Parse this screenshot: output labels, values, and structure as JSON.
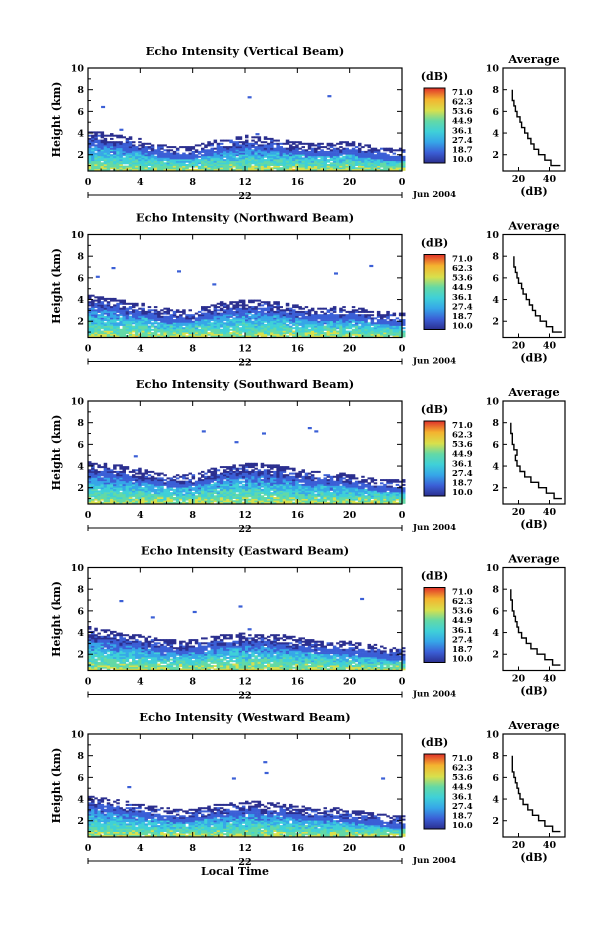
{
  "chart_data": [
    {
      "type": "heatmap",
      "title": "Echo Intensity (Vertical Beam)",
      "ylabel": "Height (km)",
      "xlabel": "",
      "day_label": "22",
      "date_label": "Jun 2004",
      "x_ticks": [
        "0",
        "4",
        "8",
        "12",
        "16",
        "20",
        "0"
      ],
      "y_ticks": [
        "2",
        "4",
        "6",
        "8",
        "10"
      ],
      "xlim": [
        0,
        24
      ],
      "ylim": [
        0.5,
        10
      ],
      "colorbar": {
        "unit": "(dB)",
        "ticks": [
          "71.0",
          "62.3",
          "53.6",
          "44.9",
          "36.1",
          "27.4",
          "18.7",
          "10.0"
        ]
      },
      "layer_top_km": [
        3.8,
        3.7,
        3.5,
        3.3,
        3.1,
        2.8,
        2.5,
        2.4,
        2.5,
        2.8,
        3.1,
        3.2,
        3.4,
        3.3,
        3.2,
        3.0,
        2.9,
        2.7,
        2.7,
        2.8,
        2.9,
        2.6,
        2.4,
        2.3,
        2.2
      ],
      "sparse_points": [
        {
          "t": 1.0,
          "h": 6.5
        },
        {
          "t": 2.4,
          "h": 4.4
        },
        {
          "t": 12.2,
          "h": 7.4
        },
        {
          "t": 18.3,
          "h": 7.5
        },
        {
          "t": 12.8,
          "h": 4.0
        }
      ],
      "average_profile": {
        "title": "Average",
        "xlabel": "(dB)",
        "x_ticks": [
          "20",
          "40"
        ],
        "xlim": [
          10,
          50
        ],
        "y_ticks": [
          "2",
          "4",
          "6",
          "8",
          "10"
        ],
        "height_km": [
          1.0,
          1.5,
          2.0,
          2.5,
          3.0,
          3.5,
          4.0,
          4.5,
          5.0,
          5.5,
          6.0,
          6.5,
          7.0,
          7.5,
          8.0
        ],
        "db": [
          47,
          41,
          37,
          33,
          30,
          28,
          26,
          24,
          22,
          21,
          19,
          18,
          17,
          16,
          16
        ]
      }
    },
    {
      "type": "heatmap",
      "title": "Echo Intensity (Northward Beam)",
      "ylabel": "Height (km)",
      "xlabel": "",
      "day_label": "22",
      "date_label": "Jun 2004",
      "x_ticks": [
        "0",
        "4",
        "8",
        "12",
        "16",
        "20",
        "0"
      ],
      "y_ticks": [
        "2",
        "4",
        "6",
        "8",
        "10"
      ],
      "xlim": [
        0,
        24
      ],
      "ylim": [
        0.5,
        10
      ],
      "colorbar": {
        "unit": "(dB)",
        "ticks": [
          "71.0",
          "62.3",
          "53.6",
          "44.9",
          "36.1",
          "27.4",
          "18.7",
          "10.0"
        ]
      },
      "layer_top_km": [
        4.1,
        3.9,
        3.7,
        3.5,
        3.3,
        3.0,
        2.8,
        2.7,
        2.8,
        3.1,
        3.4,
        3.5,
        3.6,
        3.6,
        3.5,
        3.3,
        3.1,
        2.9,
        2.9,
        3.0,
        3.0,
        2.8,
        2.6,
        2.5,
        2.4
      ],
      "sparse_points": [
        {
          "t": 0.6,
          "h": 6.2
        },
        {
          "t": 1.8,
          "h": 7.0
        },
        {
          "t": 6.8,
          "h": 6.7
        },
        {
          "t": 18.8,
          "h": 6.5
        },
        {
          "t": 21.5,
          "h": 7.2
        },
        {
          "t": 9.5,
          "h": 5.5
        }
      ],
      "average_profile": {
        "title": "Average",
        "xlabel": "(dB)",
        "x_ticks": [
          "20",
          "40"
        ],
        "xlim": [
          10,
          50
        ],
        "y_ticks": [
          "2",
          "4",
          "6",
          "8",
          "10"
        ],
        "height_km": [
          1.0,
          1.5,
          2.0,
          2.5,
          3.0,
          3.5,
          4.0,
          4.5,
          5.0,
          5.5,
          6.0,
          6.5,
          7.0,
          7.5,
          8.0
        ],
        "db": [
          48,
          42,
          38,
          34,
          31,
          29,
          27,
          25,
          23,
          22,
          20,
          19,
          18,
          17,
          17
        ]
      }
    },
    {
      "type": "heatmap",
      "title": "Echo Intensity (Southward Beam)",
      "ylabel": "Height (km)",
      "xlabel": "",
      "day_label": "22",
      "date_label": "Jun 2004",
      "x_ticks": [
        "0",
        "4",
        "8",
        "12",
        "16",
        "20",
        "0"
      ],
      "y_ticks": [
        "2",
        "4",
        "6",
        "8",
        "10"
      ],
      "xlim": [
        0,
        24
      ],
      "ylim": [
        0.5,
        10
      ],
      "colorbar": {
        "unit": "(dB)",
        "ticks": [
          "71.0",
          "62.3",
          "53.6",
          "44.9",
          "36.1",
          "27.4",
          "18.7",
          "10.0"
        ]
      },
      "layer_top_km": [
        4.0,
        3.9,
        3.8,
        3.6,
        3.4,
        3.1,
        2.9,
        2.9,
        3.0,
        3.3,
        3.6,
        3.8,
        3.9,
        3.9,
        3.8,
        3.6,
        3.4,
        3.2,
        3.1,
        3.0,
        2.9,
        2.7,
        2.5,
        2.4,
        2.4
      ],
      "sparse_points": [
        {
          "t": 3.5,
          "h": 5.0
        },
        {
          "t": 8.7,
          "h": 7.3
        },
        {
          "t": 11.2,
          "h": 6.3
        },
        {
          "t": 13.3,
          "h": 7.1
        },
        {
          "t": 16.8,
          "h": 7.6
        },
        {
          "t": 17.3,
          "h": 7.3
        }
      ],
      "average_profile": {
        "title": "Average",
        "xlabel": "(dB)",
        "x_ticks": [
          "20",
          "40"
        ],
        "xlim": [
          10,
          50
        ],
        "y_ticks": [
          "2",
          "4",
          "6",
          "8",
          "10"
        ],
        "height_km": [
          1.0,
          1.5,
          2.0,
          2.5,
          3.0,
          3.5,
          4.0,
          4.5,
          5.0,
          5.5,
          6.0,
          6.5,
          7.0,
          7.5,
          8.0
        ],
        "db": [
          48,
          43,
          38,
          33,
          28,
          24,
          21,
          19,
          18,
          19,
          17,
          16,
          16,
          15,
          15
        ]
      }
    },
    {
      "type": "heatmap",
      "title": "Echo Intensity (Eastward Beam)",
      "ylabel": "Height (km)",
      "xlabel": "",
      "day_label": "22",
      "date_label": "Jun 2004",
      "x_ticks": [
        "0",
        "4",
        "8",
        "12",
        "16",
        "20",
        "0"
      ],
      "y_ticks": [
        "2",
        "4",
        "6",
        "8",
        "10"
      ],
      "xlim": [
        0,
        24
      ],
      "ylim": [
        0.5,
        10
      ],
      "colorbar": {
        "unit": "(dB)",
        "ticks": [
          "71.0",
          "62.3",
          "53.6",
          "44.9",
          "36.1",
          "27.4",
          "18.7",
          "10.0"
        ]
      },
      "layer_top_km": [
        4.2,
        4.0,
        3.8,
        3.6,
        3.4,
        3.2,
        3.0,
        2.9,
        3.0,
        3.2,
        3.4,
        3.5,
        3.6,
        3.6,
        3.5,
        3.4,
        3.2,
        3.0,
        2.9,
        2.8,
        2.8,
        2.6,
        2.5,
        2.3,
        2.2
      ],
      "sparse_points": [
        {
          "t": 2.4,
          "h": 7.0
        },
        {
          "t": 4.8,
          "h": 5.5
        },
        {
          "t": 8.0,
          "h": 6.0
        },
        {
          "t": 11.5,
          "h": 6.5
        },
        {
          "t": 20.8,
          "h": 7.2
        },
        {
          "t": 12.2,
          "h": 4.4
        }
      ],
      "average_profile": {
        "title": "Average",
        "xlabel": "(dB)",
        "x_ticks": [
          "20",
          "40"
        ],
        "xlim": [
          10,
          50
        ],
        "y_ticks": [
          "2",
          "4",
          "6",
          "8",
          "10"
        ],
        "height_km": [
          1.0,
          1.5,
          2.0,
          2.5,
          3.0,
          3.5,
          4.0,
          4.5,
          5.0,
          5.5,
          6.0,
          6.5,
          7.0,
          7.5,
          8.0
        ],
        "db": [
          47,
          42,
          37,
          32,
          28,
          25,
          22,
          20,
          19,
          18,
          17,
          16,
          16,
          15,
          15
        ]
      }
    },
    {
      "type": "heatmap",
      "title": "Echo Intensity (Westward Beam)",
      "ylabel": "Height (km)",
      "xlabel": "Local Time",
      "day_label": "22",
      "date_label": "Jun 2004",
      "x_ticks": [
        "0",
        "4",
        "8",
        "12",
        "16",
        "20",
        "0"
      ],
      "y_ticks": [
        "2",
        "4",
        "6",
        "8",
        "10"
      ],
      "xlim": [
        0,
        24
      ],
      "ylim": [
        0.5,
        10
      ],
      "colorbar": {
        "unit": "(dB)",
        "ticks": [
          "71.0",
          "62.3",
          "53.6",
          "44.9",
          "36.1",
          "27.4",
          "18.7",
          "10.0"
        ]
      },
      "layer_top_km": [
        4.0,
        3.8,
        3.6,
        3.4,
        3.2,
        3.0,
        2.8,
        2.7,
        2.8,
        3.0,
        3.2,
        3.3,
        3.4,
        3.4,
        3.3,
        3.2,
        3.0,
        2.9,
        2.8,
        2.8,
        2.7,
        2.5,
        2.4,
        2.2,
        2.1
      ],
      "sparse_points": [
        {
          "t": 3.0,
          "h": 5.2
        },
        {
          "t": 11.0,
          "h": 6.0
        },
        {
          "t": 13.5,
          "h": 6.5
        },
        {
          "t": 13.4,
          "h": 7.5
        },
        {
          "t": 22.4,
          "h": 6.0
        }
      ],
      "average_profile": {
        "title": "Average",
        "xlabel": "(dB)",
        "x_ticks": [
          "20",
          "40"
        ],
        "xlim": [
          10,
          50
        ],
        "y_ticks": [
          "2",
          "4",
          "6",
          "8",
          "10"
        ],
        "height_km": [
          1.0,
          1.5,
          2.0,
          2.5,
          3.0,
          3.5,
          4.0,
          4.5,
          5.0,
          5.5,
          6.0,
          6.5,
          7.0,
          7.5,
          8.0
        ],
        "db": [
          47,
          42,
          37,
          33,
          29,
          26,
          23,
          21,
          20,
          19,
          18,
          17,
          16,
          16,
          16
        ]
      }
    }
  ],
  "colors": {
    "colormap": [
      "#2b2f8f",
      "#3b5fd6",
      "#36a6e8",
      "#3fd0d8",
      "#63d9a6",
      "#d8e04c",
      "#f4b32f",
      "#e0302a"
    ],
    "axes": "#000000",
    "background": "#ffffff"
  }
}
